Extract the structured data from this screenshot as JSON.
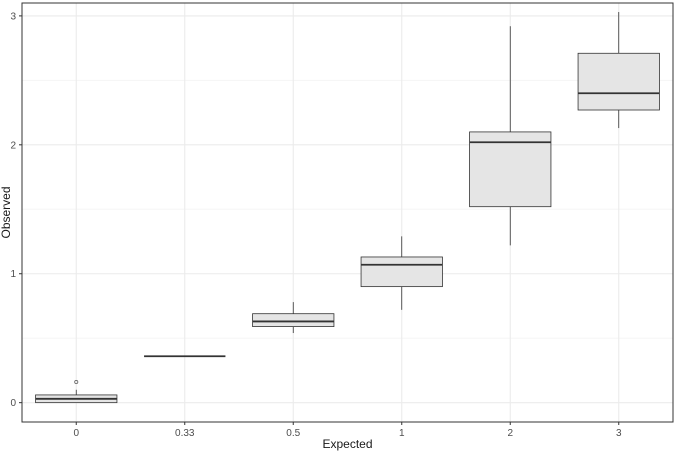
{
  "chart_data": {
    "type": "boxplot",
    "title": "",
    "xlabel": "Expected",
    "ylabel": "Observed",
    "ylim": [
      -0.15,
      3.1
    ],
    "y_ticks": [
      0,
      1,
      2,
      3
    ],
    "grid": true,
    "colors": {
      "box_fill": "#e5e5e5",
      "box_stroke": "#333333",
      "grid_major": "#ebebeb",
      "grid_minor": "#f5f5f5",
      "panel_border": "#333333"
    },
    "categories": [
      "0",
      "0.33",
      "0.5",
      "1",
      "2",
      "3"
    ],
    "boxes": [
      {
        "category": "0",
        "whisker_low": 0.0,
        "q1": 0.0,
        "median": 0.03,
        "q3": 0.06,
        "whisker_high": 0.1,
        "outliers": [
          0.16
        ]
      },
      {
        "category": "0.33",
        "whisker_low": 0.36,
        "q1": 0.36,
        "median": 0.36,
        "q3": 0.36,
        "whisker_high": 0.36,
        "outliers": []
      },
      {
        "category": "0.5",
        "whisker_low": 0.54,
        "q1": 0.59,
        "median": 0.63,
        "q3": 0.69,
        "whisker_high": 0.78,
        "outliers": []
      },
      {
        "category": "1",
        "whisker_low": 0.72,
        "q1": 0.9,
        "median": 1.07,
        "q3": 1.13,
        "whisker_high": 1.29,
        "outliers": []
      },
      {
        "category": "2",
        "whisker_low": 1.22,
        "q1": 1.52,
        "median": 2.02,
        "q3": 2.1,
        "whisker_high": 2.92,
        "outliers": []
      },
      {
        "category": "3",
        "whisker_low": 2.13,
        "q1": 2.27,
        "median": 2.4,
        "q3": 2.71,
        "whisker_high": 3.03,
        "outliers": []
      }
    ]
  }
}
